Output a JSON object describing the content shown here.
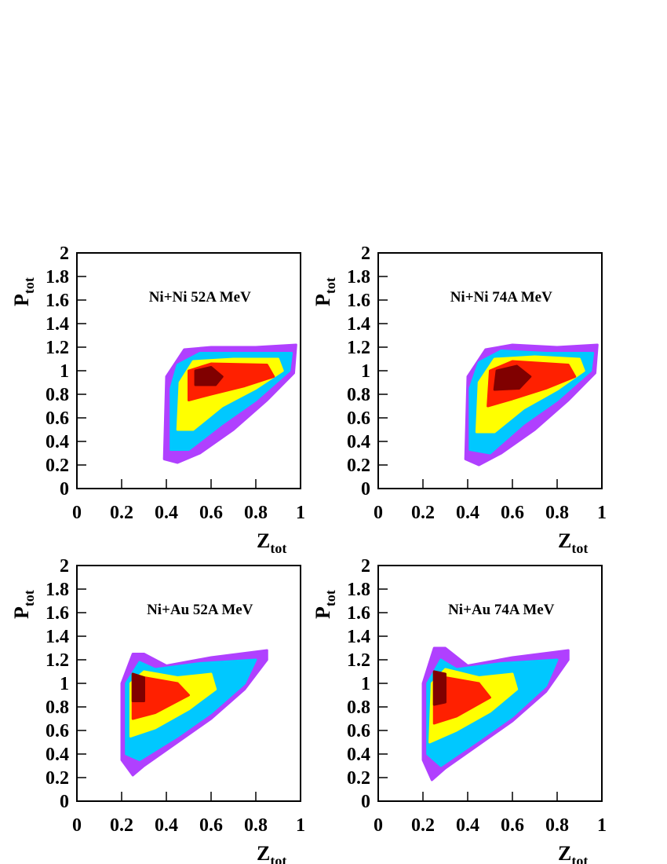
{
  "chart_data": [
    {
      "type": "contour",
      "title": "Ni+Ni 52A MeV",
      "xlabel": "Z",
      "xlabel_sub": "tot",
      "ylabel": "P",
      "ylabel_sub": "tot",
      "xlim": [
        0,
        1
      ],
      "ylim": [
        0,
        2
      ],
      "xticks": [
        0,
        0.2,
        0.4,
        0.6,
        0.8,
        1
      ],
      "yticks": [
        0,
        0.2,
        0.4,
        0.6,
        0.8,
        1,
        1.2,
        1.4,
        1.6,
        1.8,
        2
      ],
      "series": [
        {
          "color": "#b040ff",
          "x": [
            0.39,
            0.45,
            0.55,
            0.7,
            0.85,
            0.97,
            0.98,
            0.8,
            0.6,
            0.48,
            0.4
          ],
          "y": [
            0.25,
            0.22,
            0.3,
            0.5,
            0.75,
            0.98,
            1.22,
            1.2,
            1.2,
            1.18,
            0.95
          ]
        },
        {
          "color": "#00c8ff",
          "x": [
            0.42,
            0.5,
            0.65,
            0.8,
            0.95,
            0.96,
            0.75,
            0.55,
            0.45,
            0.42
          ],
          "y": [
            0.33,
            0.33,
            0.55,
            0.75,
            1.0,
            1.15,
            1.15,
            1.15,
            1.05,
            0.85
          ]
        },
        {
          "color": "#ffff00",
          "x": [
            0.45,
            0.52,
            0.65,
            0.8,
            0.92,
            0.9,
            0.7,
            0.52,
            0.46
          ],
          "y": [
            0.5,
            0.5,
            0.7,
            0.85,
            1.0,
            1.1,
            1.1,
            1.08,
            0.9
          ]
        },
        {
          "color": "#ff2000",
          "x": [
            0.5,
            0.6,
            0.75,
            0.88,
            0.85,
            0.6,
            0.5
          ],
          "y": [
            0.75,
            0.8,
            0.87,
            0.95,
            1.05,
            1.06,
            1.0
          ]
        },
        {
          "color": "#800000",
          "x": [
            0.53,
            0.62,
            0.65,
            0.6,
            0.53
          ],
          "y": [
            0.88,
            0.88,
            0.95,
            1.03,
            1.0
          ]
        }
      ]
    },
    {
      "type": "contour",
      "title": "Ni+Ni 74A MeV",
      "xlabel": "Z",
      "xlabel_sub": "tot",
      "ylabel": "P",
      "ylabel_sub": "tot",
      "xlim": [
        0,
        1
      ],
      "ylim": [
        0,
        2
      ],
      "xticks": [
        0,
        0.2,
        0.4,
        0.6,
        0.8,
        1
      ],
      "yticks": [
        0,
        0.2,
        0.4,
        0.6,
        0.8,
        1,
        1.2,
        1.4,
        1.6,
        1.8,
        2
      ],
      "series": [
        {
          "color": "#b040ff",
          "x": [
            0.39,
            0.45,
            0.55,
            0.7,
            0.85,
            0.97,
            0.98,
            0.8,
            0.6,
            0.48,
            0.4
          ],
          "y": [
            0.25,
            0.2,
            0.3,
            0.5,
            0.75,
            0.98,
            1.22,
            1.2,
            1.22,
            1.18,
            0.95
          ]
        },
        {
          "color": "#00c8ff",
          "x": [
            0.41,
            0.5,
            0.65,
            0.8,
            0.95,
            0.96,
            0.75,
            0.55,
            0.45,
            0.41
          ],
          "y": [
            0.33,
            0.3,
            0.55,
            0.75,
            1.0,
            1.15,
            1.15,
            1.17,
            1.07,
            0.85
          ]
        },
        {
          "color": "#ffff00",
          "x": [
            0.44,
            0.52,
            0.65,
            0.8,
            0.92,
            0.9,
            0.7,
            0.52,
            0.45
          ],
          "y": [
            0.48,
            0.48,
            0.68,
            0.84,
            1.0,
            1.1,
            1.12,
            1.1,
            0.9
          ]
        },
        {
          "color": "#ff2000",
          "x": [
            0.49,
            0.6,
            0.75,
            0.88,
            0.85,
            0.6,
            0.5
          ],
          "y": [
            0.7,
            0.76,
            0.85,
            0.95,
            1.05,
            1.08,
            1.0
          ]
        },
        {
          "color": "#800000",
          "x": [
            0.52,
            0.63,
            0.68,
            0.62,
            0.53
          ],
          "y": [
            0.84,
            0.85,
            0.95,
            1.04,
            1.0
          ]
        }
      ]
    },
    {
      "type": "contour",
      "title": "Ni+Au 52A MeV",
      "xlabel": "Z",
      "xlabel_sub": "tot",
      "ylabel": "P",
      "ylabel_sub": "tot",
      "xlim": [
        0,
        1
      ],
      "ylim": [
        0,
        2
      ],
      "xticks": [
        0,
        0.2,
        0.4,
        0.6,
        0.8,
        1
      ],
      "yticks": [
        0,
        0.2,
        0.4,
        0.6,
        0.8,
        1,
        1.2,
        1.4,
        1.6,
        1.8,
        2
      ],
      "series": [
        {
          "color": "#b040ff",
          "x": [
            0.2,
            0.25,
            0.3,
            0.45,
            0.6,
            0.75,
            0.85,
            0.85,
            0.6,
            0.4,
            0.3,
            0.25,
            0.2
          ],
          "y": [
            0.35,
            0.22,
            0.3,
            0.5,
            0.7,
            0.95,
            1.2,
            1.28,
            1.22,
            1.15,
            1.25,
            1.25,
            1.0
          ]
        },
        {
          "color": "#00c8ff",
          "x": [
            0.22,
            0.28,
            0.45,
            0.6,
            0.75,
            0.8,
            0.55,
            0.35,
            0.28,
            0.22
          ],
          "y": [
            0.4,
            0.35,
            0.55,
            0.75,
            1.0,
            1.2,
            1.17,
            1.12,
            1.18,
            1.0
          ]
        },
        {
          "color": "#ffff00",
          "x": [
            0.24,
            0.35,
            0.5,
            0.62,
            0.6,
            0.45,
            0.3,
            0.24
          ],
          "y": [
            0.55,
            0.62,
            0.78,
            0.95,
            1.08,
            1.05,
            1.1,
            1.0
          ]
        },
        {
          "color": "#ff2000",
          "x": [
            0.25,
            0.35,
            0.5,
            0.45,
            0.3,
            0.25
          ],
          "y": [
            0.7,
            0.75,
            0.9,
            1.0,
            1.05,
            1.08
          ]
        },
        {
          "color": "#800000",
          "x": [
            0.25,
            0.3,
            0.3,
            0.25
          ],
          "y": [
            0.85,
            0.85,
            1.05,
            1.08
          ]
        }
      ]
    },
    {
      "type": "contour",
      "title": "Ni+Au 74A MeV",
      "xlabel": "Z",
      "xlabel_sub": "tot",
      "ylabel": "P",
      "ylabel_sub": "tot",
      "xlim": [
        0,
        1
      ],
      "ylim": [
        0,
        2
      ],
      "xticks": [
        0,
        0.2,
        0.4,
        0.6,
        0.8,
        1
      ],
      "yticks": [
        0,
        0.2,
        0.4,
        0.6,
        0.8,
        1,
        1.2,
        1.4,
        1.6,
        1.8,
        2
      ],
      "series": [
        {
          "color": "#b040ff",
          "x": [
            0.2,
            0.24,
            0.3,
            0.45,
            0.6,
            0.75,
            0.85,
            0.85,
            0.6,
            0.4,
            0.3,
            0.25,
            0.2
          ],
          "y": [
            0.35,
            0.18,
            0.28,
            0.48,
            0.68,
            0.93,
            1.2,
            1.28,
            1.22,
            1.15,
            1.3,
            1.3,
            1.0
          ]
        },
        {
          "color": "#00c8ff",
          "x": [
            0.22,
            0.28,
            0.45,
            0.6,
            0.75,
            0.8,
            0.55,
            0.35,
            0.28,
            0.22
          ],
          "y": [
            0.4,
            0.3,
            0.52,
            0.72,
            0.98,
            1.2,
            1.17,
            1.12,
            1.2,
            1.0
          ]
        },
        {
          "color": "#ffff00",
          "x": [
            0.23,
            0.35,
            0.5,
            0.62,
            0.6,
            0.45,
            0.3,
            0.24
          ],
          "y": [
            0.5,
            0.6,
            0.76,
            0.95,
            1.08,
            1.05,
            1.12,
            1.0
          ]
        },
        {
          "color": "#ff2000",
          "x": [
            0.25,
            0.35,
            0.5,
            0.45,
            0.3,
            0.25
          ],
          "y": [
            0.66,
            0.72,
            0.88,
            1.0,
            1.05,
            1.1
          ]
        },
        {
          "color": "#800000",
          "x": [
            0.25,
            0.3,
            0.3,
            0.25
          ],
          "y": [
            0.82,
            0.84,
            1.08,
            1.1
          ]
        }
      ]
    }
  ]
}
